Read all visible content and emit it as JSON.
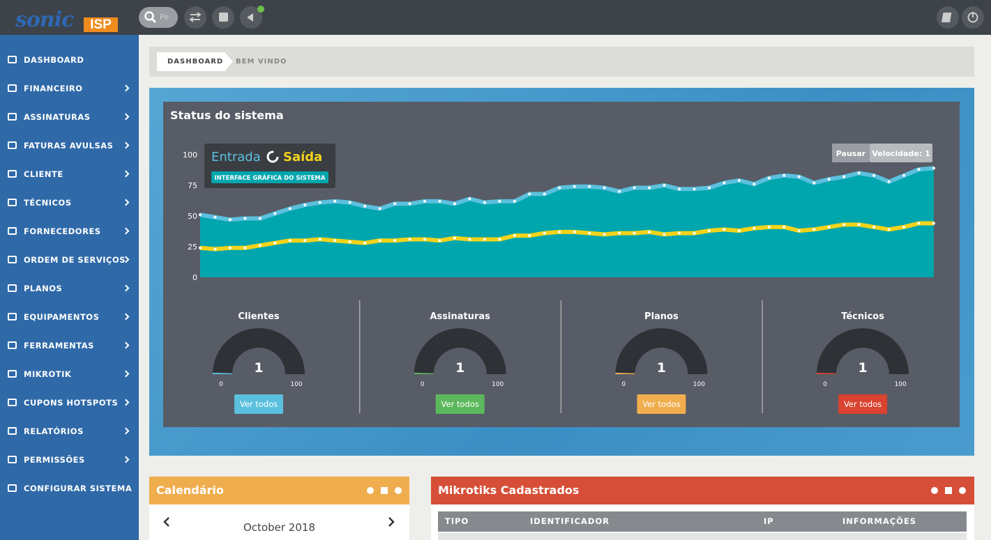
{
  "header": {
    "logo": "sonic",
    "logo_badge": "ISP",
    "search_placeholder": "Pe"
  },
  "sidebar": {
    "items": [
      {
        "label": "DASHBOARD",
        "submenu": false
      },
      {
        "label": "FINANCEIRO",
        "submenu": true
      },
      {
        "label": "ASSINATURAS",
        "submenu": true
      },
      {
        "label": "FATURAS AVULSAS",
        "submenu": true
      },
      {
        "label": "CLIENTE",
        "submenu": true
      },
      {
        "label": "TÉCNICOS",
        "submenu": true
      },
      {
        "label": "FORNECEDORES",
        "submenu": true
      },
      {
        "label": "ORDEM DE SERVIÇOS",
        "submenu": true
      },
      {
        "label": "PLANOS",
        "submenu": true
      },
      {
        "label": "EQUIPAMENTOS",
        "submenu": true
      },
      {
        "label": "FERRAMENTAS",
        "submenu": true
      },
      {
        "label": "MIKROTIK",
        "submenu": true
      },
      {
        "label": "CUPONS HOTSPOTS",
        "submenu": true
      },
      {
        "label": "RELATÓRIOS",
        "submenu": true
      },
      {
        "label": "PERMISSÕES",
        "submenu": true
      },
      {
        "label": "CONFIGURAR SISTEMA",
        "submenu": false
      }
    ]
  },
  "breadcrumb": [
    "DASHBOARD",
    "BEM VINDO"
  ],
  "status_panel": {
    "title": "Status do sistema",
    "legend_badge": "INTERFACE GRÁFICA DO SISTEMA",
    "controls": [
      "Pausar",
      "Velocidade: 1"
    ],
    "gauges": [
      {
        "title": "Clientes",
        "value": 1,
        "min": 0,
        "max": 100,
        "button": "Ver todos",
        "color": "#5bc0de"
      },
      {
        "title": "Assinaturas",
        "value": 1,
        "min": 0,
        "max": 100,
        "button": "Ver todos",
        "color": "#5cb85c"
      },
      {
        "title": "Planos",
        "value": 1,
        "min": 0,
        "max": 100,
        "button": "Ver todos",
        "color": "#f0ad4e"
      },
      {
        "title": "Técnicos",
        "value": 1,
        "min": 0,
        "max": 100,
        "button": "Ver todos",
        "color": "#d9432f"
      }
    ]
  },
  "chart_data": {
    "type": "area",
    "ylim": [
      0,
      100
    ],
    "yticks": [
      0,
      25,
      50,
      75,
      100
    ],
    "grid": false,
    "fill": "#00a6ad",
    "series": [
      {
        "name": "Entrada",
        "color": "#5bc0de",
        "values": [
          51,
          49,
          47,
          48,
          48,
          52,
          56,
          59,
          61,
          62,
          61,
          58,
          56,
          60,
          60,
          62,
          62,
          60,
          64,
          61,
          62,
          62,
          68,
          68,
          73,
          74,
          74,
          73,
          70,
          73,
          73,
          75,
          72,
          72,
          73,
          77,
          79,
          76,
          81,
          83,
          82,
          77,
          80,
          82,
          85,
          83,
          78,
          83,
          88,
          89
        ]
      },
      {
        "name": "Saída",
        "color": "#f2d31b",
        "values": [
          24,
          23,
          24,
          24,
          26,
          28,
          30,
          30,
          31,
          30,
          29,
          28,
          30,
          30,
          31,
          31,
          30,
          32,
          31,
          31,
          31,
          34,
          34,
          36,
          37,
          37,
          36,
          35,
          36,
          36,
          37,
          35,
          36,
          36,
          38,
          39,
          38,
          40,
          41,
          41,
          38,
          39,
          41,
          43,
          43,
          41,
          39,
          41,
          44,
          44
        ]
      }
    ]
  },
  "calendar": {
    "title": "Calendário",
    "month": "October 2018"
  },
  "mikrotiks": {
    "title": "Mikrotiks Cadastrados",
    "columns": [
      "TIPO",
      "IDENTIFICADOR",
      "IP",
      "INFORMAÇÕES"
    ]
  }
}
